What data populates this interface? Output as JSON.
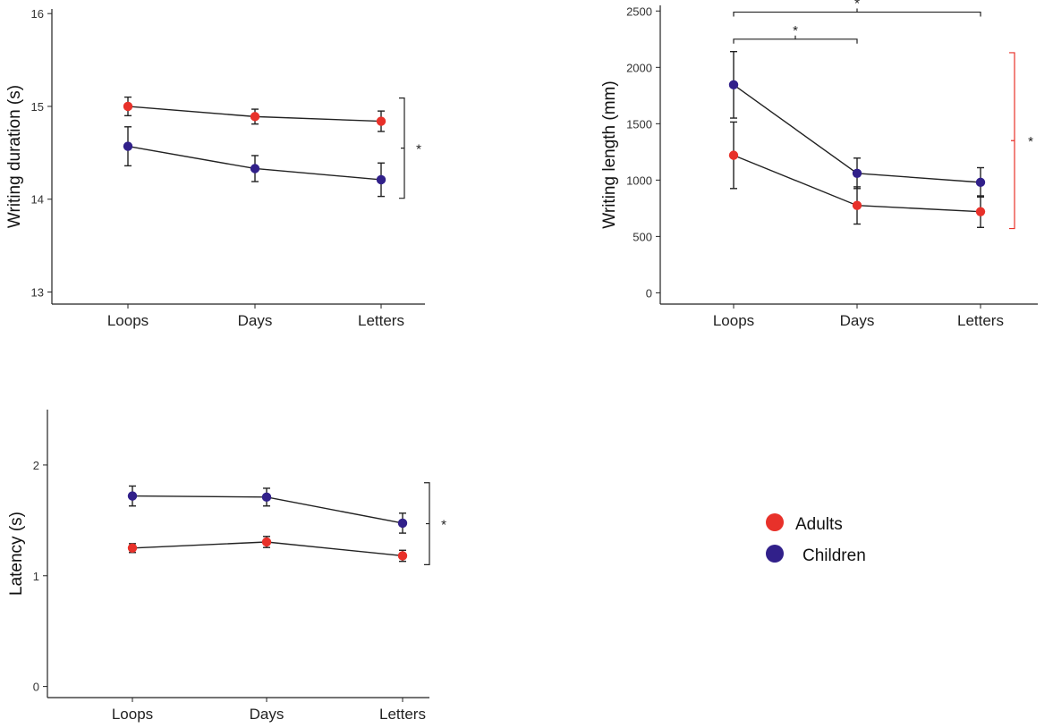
{
  "colors": {
    "adults": "#e8312a",
    "children": "#31208a",
    "line": "#222222",
    "red_bracket": "#e8312a"
  },
  "legend": {
    "items": [
      {
        "key": "adults",
        "label": "Adults"
      },
      {
        "key": "children",
        "label": "Children"
      }
    ]
  },
  "chart_data": [
    {
      "type": "line",
      "ylabel": "Writing duration (s)",
      "xlabel": "",
      "categories": [
        "Loops",
        "Days",
        "Letters"
      ],
      "ylim": [
        12.87,
        16.05
      ],
      "yticks": [
        13,
        14,
        15,
        16
      ],
      "series": [
        {
          "name": "Adults",
          "key": "adults",
          "values": [
            15.0,
            14.89,
            14.84
          ],
          "err": [
            0.1,
            0.08,
            0.11
          ]
        },
        {
          "name": "Children",
          "key": "children",
          "values": [
            14.57,
            14.33,
            14.21
          ],
          "err": [
            0.21,
            0.14,
            0.18
          ]
        }
      ],
      "annotations": [
        {
          "type": "group-bracket",
          "label": "*",
          "from": 15.09,
          "to": 14.01,
          "color": "line"
        }
      ]
    },
    {
      "type": "line",
      "ylabel": "Writing length (mm)",
      "xlabel": "",
      "categories": [
        "Loops",
        "Days",
        "Letters"
      ],
      "ylim": [
        -100,
        2550
      ],
      "yticks": [
        0,
        500,
        1000,
        1500,
        2000,
        2500
      ],
      "series": [
        {
          "name": "Adults",
          "key": "adults",
          "values": [
            1220,
            775,
            720
          ],
          "err": [
            295,
            165,
            140
          ]
        },
        {
          "name": "Children",
          "key": "children",
          "values": [
            1845,
            1060,
            980
          ],
          "err": [
            295,
            135,
            130
          ]
        }
      ],
      "annotations": [
        {
          "type": "group-bracket",
          "label": "*",
          "from": 2130,
          "to": 570,
          "color": "red_bracket"
        },
        {
          "type": "category-bracket",
          "label": "*",
          "from_cat": 0,
          "to_cat": 1,
          "y": 2250
        },
        {
          "type": "category-bracket",
          "label": "*",
          "from_cat": 0,
          "to_cat": 2,
          "y": 2490
        }
      ]
    },
    {
      "type": "line",
      "ylabel": "Latency (s)",
      "xlabel": "",
      "categories": [
        "Loops",
        "Days",
        "Letters"
      ],
      "ylim": [
        -0.1,
        2.5
      ],
      "yticks": [
        0,
        1,
        2
      ],
      "series": [
        {
          "name": "Adults",
          "key": "adults",
          "values": [
            1.25,
            1.305,
            1.18
          ],
          "err": [
            0.04,
            0.05,
            0.05
          ]
        },
        {
          "name": "Children",
          "key": "children",
          "values": [
            1.72,
            1.71,
            1.475
          ],
          "err": [
            0.09,
            0.08,
            0.09
          ]
        }
      ],
      "annotations": [
        {
          "type": "group-bracket",
          "label": "*",
          "from": 1.84,
          "to": 1.1,
          "color": "line"
        }
      ]
    }
  ]
}
